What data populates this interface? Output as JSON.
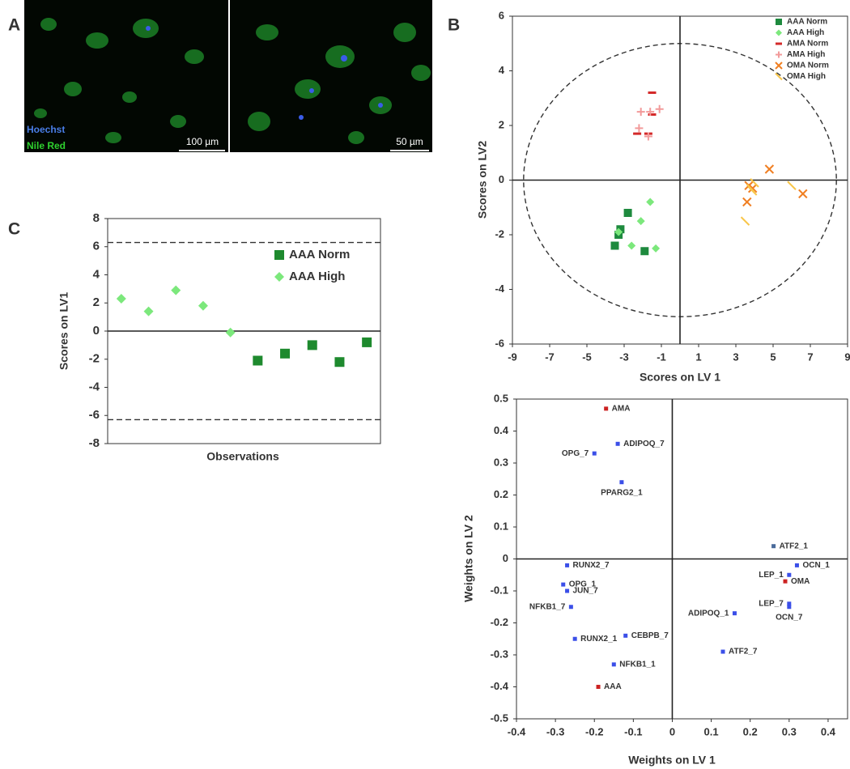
{
  "panel_labels": [
    "A",
    "B",
    "C"
  ],
  "micrograph": {
    "stains": [
      {
        "name": "Hoechst",
        "color": "#4a7ee8"
      },
      {
        "name": "Nile Red",
        "color": "#2fd12f"
      }
    ],
    "scale_bars": [
      "100 µm",
      "50 µm"
    ]
  },
  "chart_data": [
    {
      "type": "scatter",
      "x_label": "Scores on LV 1",
      "y_label": "Scores on LV2",
      "xlim": [
        -9,
        9
      ],
      "xticks": [
        -9,
        -7,
        -5,
        -3,
        -1,
        1,
        3,
        5,
        7,
        9
      ],
      "ylim": [
        -6,
        6
      ],
      "yticks": [
        -6,
        -4,
        -2,
        0,
        2,
        4,
        6
      ],
      "ellipse": [
        8.4,
        5
      ],
      "legend": "upper right",
      "series": [
        {
          "name": "AAA Norm",
          "color": "#1e8a3e",
          "marker": "square",
          "x": [
            -3.2,
            -3.5,
            -2.8,
            -1.9,
            -3.3
          ],
          "values": [
            -1.8,
            -2.4,
            -1.2,
            -2.6,
            -2.0
          ]
        },
        {
          "name": "AAA High",
          "color": "#7ce87c",
          "marker": "diamond",
          "x": [
            -1.6,
            -2.1,
            -3.3,
            -2.6,
            -1.3
          ],
          "values": [
            -0.8,
            -1.5,
            -1.9,
            -2.4,
            -2.5
          ]
        },
        {
          "name": "AMA Norm",
          "color": "#d42a2a",
          "marker": "dash",
          "x": [
            -1.5,
            -1.7,
            -2.3,
            -1.5
          ],
          "values": [
            3.2,
            1.7,
            1.7,
            2.4
          ]
        },
        {
          "name": "AMA High",
          "color": "#f29a9a",
          "marker": "plus",
          "x": [
            -2.1,
            -1.1,
            -1.6,
            -2.2,
            -1.7
          ],
          "values": [
            2.5,
            2.6,
            2.5,
            1.9,
            1.6
          ]
        },
        {
          "name": "OMA Norm",
          "color": "#f07f22",
          "marker": "x",
          "x": [
            3.6,
            4.8,
            3.9,
            6.6,
            3.7
          ],
          "values": [
            -0.8,
            0.4,
            -0.3,
            -0.5,
            -0.2
          ]
        },
        {
          "name": "OMA High",
          "color": "#f8c64a",
          "marker": "tick",
          "x": [
            4.0,
            3.9,
            3.5,
            6.0,
            3.8
          ],
          "values": [
            -0.1,
            -0.4,
            -1.5,
            -0.2,
            -0.3
          ]
        }
      ]
    },
    {
      "type": "scatter",
      "x_label": "Observations",
      "y_label": "Scores on LV1",
      "categories": [
        null,
        null,
        null,
        null,
        null,
        null,
        null,
        null,
        null,
        null
      ],
      "ylim": [
        -8,
        8
      ],
      "yticks": [
        -8,
        -6,
        -4,
        -2,
        0,
        2,
        4,
        6,
        8
      ],
      "limits": [
        6.3,
        -6.3
      ],
      "legend": "upper right",
      "series": [
        {
          "name": "AAA Norm",
          "color": "#1e8a2e",
          "marker": "square",
          "values": [
            null,
            null,
            null,
            null,
            null,
            -2.1,
            -1.6,
            -1.0,
            -2.2,
            -0.8
          ]
        },
        {
          "name": "AAA High",
          "color": "#7ce87c",
          "marker": "diamond",
          "values": [
            2.3,
            1.4,
            2.9,
            1.8,
            -0.1,
            null,
            null,
            null,
            null,
            null
          ]
        }
      ]
    },
    {
      "type": "scatter",
      "x_label": "Weights on LV 1",
      "y_label": "Weights on LV 2",
      "xlim": [
        -0.4,
        0.45
      ],
      "xticks": [
        -0.4,
        -0.3,
        -0.2,
        -0.1,
        0,
        0.1,
        0.2,
        0.3,
        0.4
      ],
      "ylim": [
        -0.5,
        0.5
      ],
      "yticks": [
        -0.5,
        -0.4,
        -0.3,
        -0.2,
        -0.1,
        0,
        0.1,
        0.2,
        0.3,
        0.4,
        0.5
      ],
      "labels": [
        "AMA",
        "ADIPOQ_7",
        "OPG_7",
        "PPARG2_1",
        "ATF2_1",
        "RUNX2_7",
        "OCN_1",
        "OPG_1",
        "LEP_1",
        "JUN_7",
        "OMA",
        "LEP_7",
        "NFKB1_7",
        "OCN_7",
        "ADIPOQ_1",
        "RUNX2_1",
        "CEBPB_7",
        "ATF2_7",
        "NFKB1_1",
        "AAA"
      ],
      "x": [
        -0.17,
        -0.14,
        -0.2,
        -0.13,
        0.26,
        -0.27,
        0.32,
        -0.28,
        0.3,
        -0.27,
        0.29,
        0.3,
        -0.26,
        0.3,
        0.16,
        -0.25,
        -0.12,
        0.13,
        -0.15,
        -0.19
      ],
      "values": [
        0.47,
        0.36,
        0.33,
        0.24,
        0.04,
        -0.02,
        -0.02,
        -0.08,
        -0.05,
        -0.1,
        -0.07,
        -0.14,
        -0.15,
        -0.15,
        -0.17,
        -0.25,
        -0.24,
        -0.29,
        -0.33,
        -0.4
      ],
      "colors": [
        "#cc2222",
        "#3b4fe8",
        "#3b4fe8",
        "#3b4fe8",
        "#4a6a9a",
        "#3b4fe8",
        "#3b4fe8",
        "#3b4fe8",
        "#3b4fe8",
        "#3b4fe8",
        "#cc2222",
        "#3b4fe8",
        "#3b4fe8",
        "#3b4fe8",
        "#3b4fe8",
        "#3b4fe8",
        "#3b4fe8",
        "#3b4fe8",
        "#3b4fe8",
        "#cc2222"
      ]
    }
  ]
}
